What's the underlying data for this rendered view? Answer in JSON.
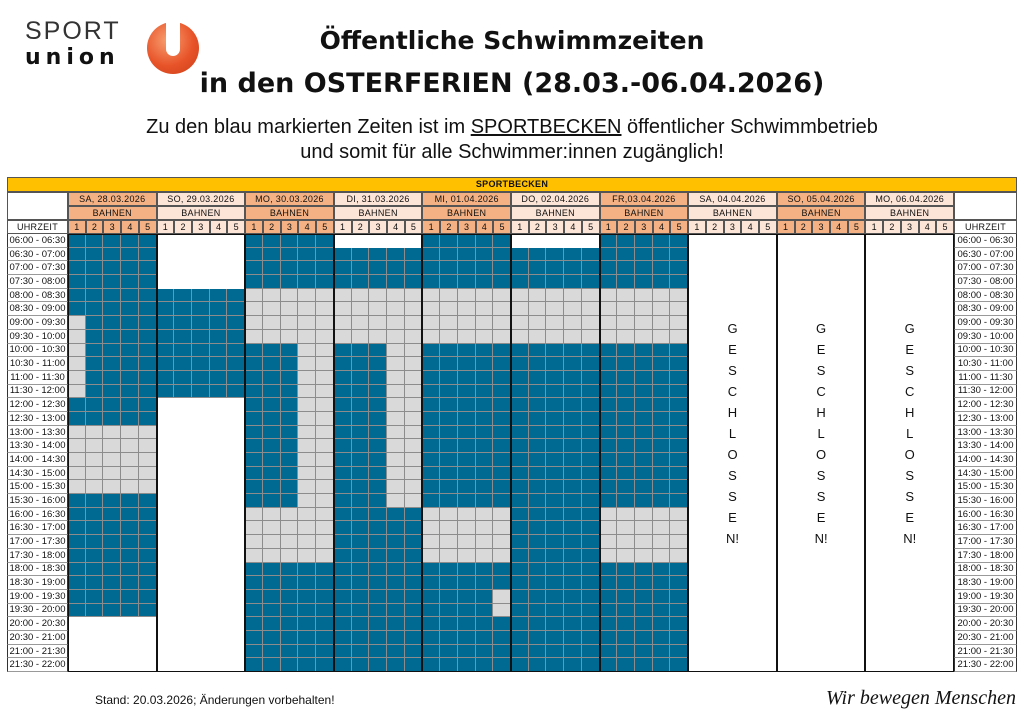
{
  "logo": {
    "line1": "SPORT",
    "line2": "union"
  },
  "title": {
    "line1": "Öffentliche Schwimmzeiten",
    "line2": "in den OSTERFERIEN (28.03.-06.04.2026)"
  },
  "subtitle": {
    "line1_pre": "Zu den blau markierten Zeiten ist im ",
    "line1_link": "SPORTBECKEN",
    "line1_post": " öffentlicher Schwimmbetrieb",
    "line2": "und somit für alle Schwimmer:innen zugänglich!"
  },
  "table": {
    "pool": "SPORTBECKEN",
    "time_header": "UHRZEIT",
    "lanes_label": "BAHNEN",
    "lanes": [
      "1",
      "2",
      "3",
      "4",
      "5"
    ],
    "colors": {
      "public": "#006a93",
      "not_public": "#d9d9d9",
      "none": "#ffffff",
      "pool_header": "#ffc000",
      "day_dark": "#f4b183",
      "day_light": "#fce4d6"
    },
    "legend_codes": {
      "B": "public",
      "G": "not_public",
      "W": "none"
    },
    "times": [
      "06:00 - 06:30",
      "06:30 - 07:00",
      "07:00 - 07:30",
      "07:30 - 08:00",
      "08:00 - 08:30",
      "08:30 - 09:00",
      "09:00 - 09:30",
      "09:30 - 10:00",
      "10:00 - 10:30",
      "10:30 - 11:00",
      "11:00 - 11:30",
      "11:30 - 12:00",
      "12:00 - 12:30",
      "12:30 - 13:00",
      "13:00 - 13:30",
      "13:30 - 14:00",
      "14:00 - 14:30",
      "14:30 - 15:00",
      "15:00 - 15:30",
      "15:30 - 16:00",
      "16:00 - 16:30",
      "16:30 - 17:00",
      "17:00 - 17:30",
      "17:30 - 18:00",
      "18:00 - 18:30",
      "18:30 - 19:00",
      "19:00 - 19:30",
      "19:30 - 20:00",
      "20:00 - 20:30",
      "20:30 - 21:00",
      "21:00 - 21:30",
      "21:30 - 22:00"
    ],
    "days": [
      {
        "label": "SA, 28.03.2026",
        "shade": "dark",
        "closed": false,
        "slots": [
          "BBBBB",
          "BBBBB",
          "BBBBB",
          "BBBBB",
          "BBBBB",
          "BBBBB",
          "GBBBB",
          "GBBBB",
          "GBBBB",
          "GBBBB",
          "GBBBB",
          "GBBBB",
          "BBBBB",
          "BBBBB",
          "GGGGG",
          "GGGGG",
          "GGGGG",
          "GGGGG",
          "GGGGG",
          "BBBBB",
          "BBBBB",
          "BBBBB",
          "BBBBB",
          "BBBBB",
          "BBBBB",
          "BBBBB",
          "BBBBB",
          "BBBBB",
          "WWWWW",
          "WWWWW",
          "WWWWW",
          "WWWWW"
        ]
      },
      {
        "label": "SO, 29.03.2026",
        "shade": "light",
        "closed": false,
        "slots": [
          "WWWWW",
          "WWWWW",
          "WWWWW",
          "WWWWW",
          "BBBBB",
          "BBBBB",
          "BBBBB",
          "BBBBB",
          "BBBBB",
          "BBBBB",
          "BBBBB",
          "BBBBB",
          "WWWWW",
          "WWWWW",
          "WWWWW",
          "WWWWW",
          "WWWWW",
          "WWWWW",
          "WWWWW",
          "WWWWW",
          "WWWWW",
          "WWWWW",
          "WWWWW",
          "WWWWW",
          "WWWWW",
          "WWWWW",
          "WWWWW",
          "WWWWW",
          "WWWWW",
          "WWWWW",
          "WWWWW",
          "WWWWW"
        ]
      },
      {
        "label": "MO, 30.03.2026",
        "shade": "dark",
        "closed": false,
        "slots": [
          "BBBBB",
          "BBBBB",
          "BBBBB",
          "BBBBB",
          "GGGGG",
          "GGGGG",
          "GGGGG",
          "GGGGG",
          "BBBGG",
          "BBBGG",
          "BBBGG",
          "BBBGG",
          "BBBGG",
          "BBBGG",
          "BBBGG",
          "BBBGG",
          "BBBGG",
          "BBBGG",
          "BBBGG",
          "BBBGG",
          "GGGGG",
          "GGGGG",
          "GGGGG",
          "GGGGG",
          "BBBBB",
          "BBBBB",
          "BBBBB",
          "BBBBB",
          "BBBBB",
          "BBBBB",
          "BBBBB",
          "BBBBB"
        ]
      },
      {
        "label": "DI, 31.03.2026",
        "shade": "light",
        "closed": false,
        "slots": [
          "WWWWW",
          "BBBBB",
          "BBBBB",
          "BBBBB",
          "GGGGG",
          "GGGGG",
          "GGGGG",
          "GGGGG",
          "BBBGG",
          "BBBGG",
          "BBBGG",
          "BBBGG",
          "BBBGG",
          "BBBGG",
          "BBBGG",
          "BBBGG",
          "BBBGG",
          "BBBGG",
          "BBBGG",
          "BBBGG",
          "BBBBB",
          "BBBBB",
          "BBBBB",
          "BBBBB",
          "BBBBB",
          "BBBBB",
          "BBBBB",
          "BBBBB",
          "BBBBB",
          "BBBBB",
          "BBBBB",
          "BBBBB"
        ]
      },
      {
        "label": "MI, 01.04.2026",
        "shade": "dark",
        "closed": false,
        "slots": [
          "BBBBB",
          "BBBBB",
          "BBBBB",
          "BBBBB",
          "GGGGG",
          "GGGGG",
          "GGGGG",
          "GGGGG",
          "BBBBB",
          "BBBBB",
          "BBBBB",
          "BBBBB",
          "BBBBB",
          "BBBBB",
          "BBBBB",
          "BBBBB",
          "BBBBB",
          "BBBBB",
          "BBBBB",
          "BBBBB",
          "GGGGG",
          "GGGGG",
          "GGGGG",
          "GGGGG",
          "BBBBB",
          "BBBBB",
          "BBBBG",
          "BBBBG",
          "BBBBB",
          "BBBBB",
          "BBBBB",
          "BBBBB"
        ]
      },
      {
        "label": "DO, 02.04.2026",
        "shade": "light",
        "closed": false,
        "slots": [
          "WWWWW",
          "BBBBB",
          "BBBBB",
          "BBBBB",
          "GGGGG",
          "GGGGG",
          "GGGGG",
          "GGGGG",
          "BBBBB",
          "BBBBB",
          "BBBBB",
          "BBBBB",
          "BBBBB",
          "BBBBB",
          "BBBBB",
          "BBBBB",
          "BBBBB",
          "BBBBB",
          "BBBBB",
          "BBBBB",
          "BBBBB",
          "BBBBB",
          "BBBBB",
          "BBBBB",
          "BBBBB",
          "BBBBB",
          "BBBBB",
          "BBBBB",
          "BBBBB",
          "BBBBB",
          "BBBBB",
          "BBBBB"
        ]
      },
      {
        "label": "FR,03.04.2026",
        "shade": "dark",
        "closed": false,
        "slots": [
          "BBBBB",
          "BBBBB",
          "BBBBB",
          "BBBBB",
          "GGGGG",
          "GGGGG",
          "GGGGG",
          "GGGGG",
          "BBBBB",
          "BBBBB",
          "BBBBB",
          "BBBBB",
          "BBBBB",
          "BBBBB",
          "BBBBB",
          "BBBBB",
          "BBBBB",
          "BBBBB",
          "BBBBB",
          "BBBBB",
          "GGGGG",
          "GGGGG",
          "GGGGG",
          "GGGGG",
          "BBBBB",
          "BBBBB",
          "BBBBB",
          "BBBBB",
          "BBBBB",
          "BBBBB",
          "BBBBB",
          "BBBBB"
        ]
      },
      {
        "label": "SA, 04.04.2026",
        "shade": "light",
        "closed": true,
        "closed_text": "GESCHLOSSEN!"
      },
      {
        "label": "SO, 05.04.2026",
        "shade": "dark",
        "closed": true,
        "closed_text": "GESCHLOSSEN!"
      },
      {
        "label": "MO, 06.04.2026",
        "shade": "light",
        "closed": true,
        "closed_text": "GESCHLOSSEN!"
      }
    ]
  },
  "footer": {
    "note": "Stand: 20.03.2026; Änderungen vorbehalten!",
    "slogan": "Wir bewegen Menschen"
  }
}
